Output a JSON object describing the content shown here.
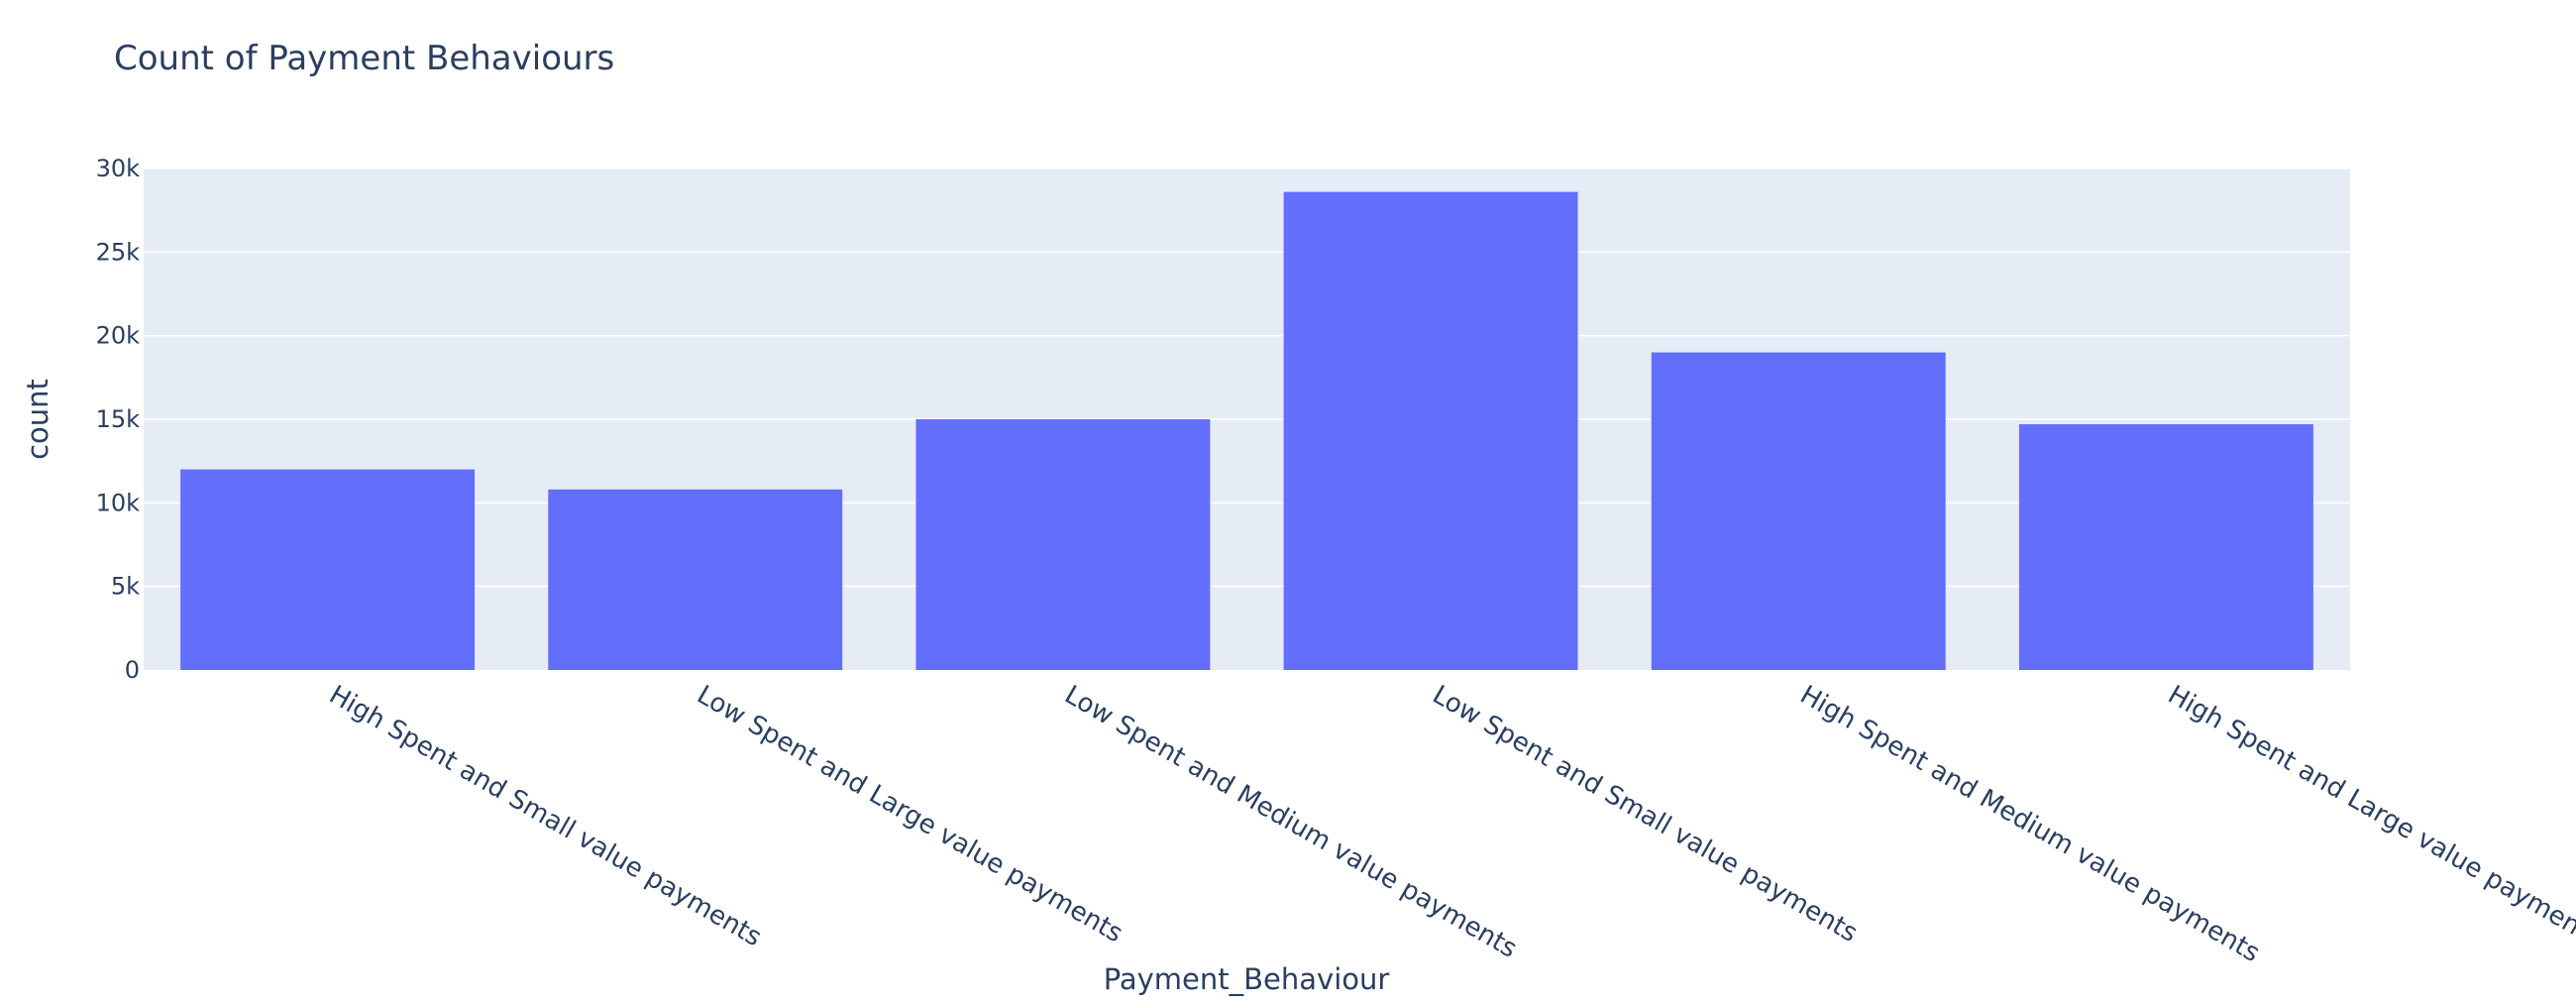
{
  "chart_data": {
    "type": "bar",
    "title": "Count of Payment Behaviours",
    "xlabel": "Payment_Behaviour",
    "ylabel": "count",
    "categories": [
      "High Spent and Small value payments",
      "Low Spent and Large value payments",
      "Low Spent and Medium value payments",
      "Low Spent and Small value payments",
      "High Spent and Medium value payments",
      "High Spent and Large value payments"
    ],
    "values": [
      12000,
      10800,
      15000,
      28600,
      19000,
      14700
    ],
    "ylim": [
      0,
      30000
    ],
    "yticks": [
      0,
      5000,
      10000,
      15000,
      20000,
      25000,
      30000
    ],
    "ytick_labels": [
      "0",
      "5k",
      "10k",
      "15k",
      "20k",
      "25k",
      "30k"
    ],
    "grid": true,
    "legend": "none",
    "colors": {
      "bar": "#636efa",
      "plot_background": "#e5ecf6",
      "gridline": "#ffffff",
      "text": "#2a3f5f"
    }
  }
}
